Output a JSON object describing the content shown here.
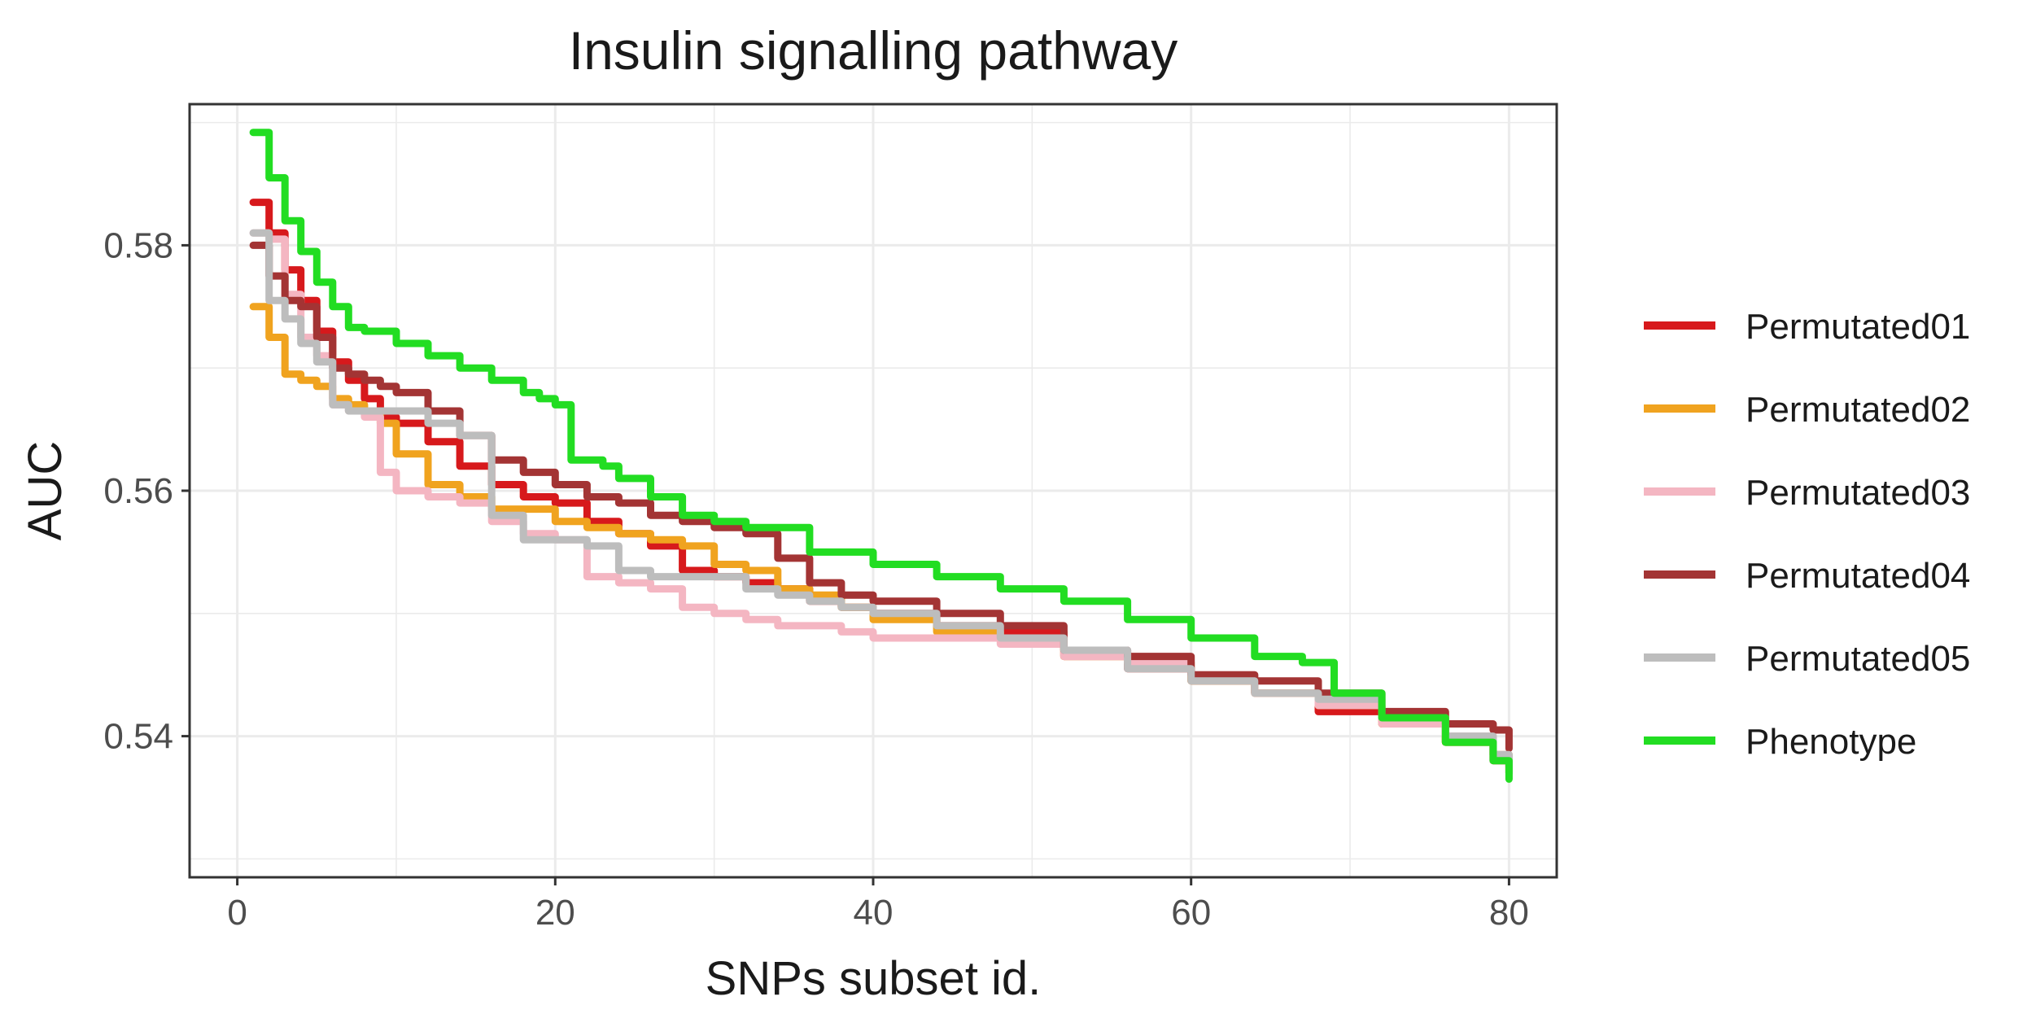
{
  "chart_data": {
    "type": "line",
    "title": "Insulin signalling pathway",
    "xlabel": "SNPs subset id.",
    "ylabel": "AUC",
    "xlim": [
      -3,
      83
    ],
    "ylim": [
      0.5285,
      0.5915
    ],
    "xticks": [
      0,
      20,
      40,
      60,
      80
    ],
    "xtick_labels": [
      "0",
      "20",
      "40",
      "60",
      "80"
    ],
    "yticks": [
      0.54,
      0.56,
      0.58
    ],
    "ytick_labels": [
      "0.54",
      "0.56",
      "0.58"
    ],
    "grid": true,
    "legend_position": "right",
    "series": [
      {
        "name": "Permutated01",
        "color": "#d7191c",
        "x": [
          1,
          2,
          3,
          4,
          5,
          6,
          7,
          8,
          9,
          10,
          12,
          14,
          16,
          18,
          20,
          22,
          24,
          26,
          28,
          30,
          32,
          34,
          36,
          38,
          40,
          44,
          48,
          52,
          56,
          60,
          64,
          68,
          72,
          76,
          79,
          80
        ],
        "y": [
          0.5835,
          0.581,
          0.578,
          0.5755,
          0.573,
          0.5705,
          0.569,
          0.5675,
          0.566,
          0.5655,
          0.564,
          0.562,
          0.5605,
          0.5595,
          0.559,
          0.5575,
          0.5565,
          0.5555,
          0.5535,
          0.553,
          0.5525,
          0.552,
          0.551,
          0.5505,
          0.55,
          0.549,
          0.5485,
          0.5465,
          0.5455,
          0.5445,
          0.5435,
          0.542,
          0.541,
          0.5395,
          0.538,
          0.5375
        ]
      },
      {
        "name": "Permutated02",
        "color": "#f0a31f",
        "x": [
          1,
          2,
          3,
          4,
          5,
          6,
          7,
          8,
          9,
          10,
          12,
          14,
          16,
          18,
          20,
          22,
          24,
          26,
          28,
          30,
          32,
          34,
          36,
          38,
          40,
          44,
          48,
          52,
          56,
          60,
          64,
          68,
          72,
          76,
          79,
          80
        ],
        "y": [
          0.575,
          0.5725,
          0.5695,
          0.569,
          0.5685,
          0.5675,
          0.567,
          0.5665,
          0.5655,
          0.563,
          0.5605,
          0.5595,
          0.5585,
          0.5585,
          0.5575,
          0.557,
          0.5565,
          0.556,
          0.5555,
          0.554,
          0.5535,
          0.552,
          0.5515,
          0.5505,
          0.5495,
          0.5485,
          0.548,
          0.5465,
          0.546,
          0.5445,
          0.5435,
          0.5425,
          0.541,
          0.5395,
          0.5385,
          0.537
        ]
      },
      {
        "name": "Permutated03",
        "color": "#f4b6c2",
        "x": [
          1,
          2,
          3,
          4,
          5,
          6,
          7,
          8,
          9,
          10,
          12,
          14,
          16,
          18,
          20,
          22,
          24,
          26,
          28,
          30,
          32,
          34,
          36,
          38,
          40,
          44,
          48,
          52,
          56,
          60,
          64,
          68,
          72,
          76,
          79,
          80
        ],
        "y": [
          0.581,
          0.5805,
          0.576,
          0.5725,
          0.571,
          0.567,
          0.5665,
          0.566,
          0.5615,
          0.56,
          0.5595,
          0.559,
          0.5575,
          0.5565,
          0.556,
          0.553,
          0.5525,
          0.552,
          0.5505,
          0.55,
          0.5495,
          0.549,
          0.549,
          0.5485,
          0.548,
          0.548,
          0.5475,
          0.5465,
          0.546,
          0.545,
          0.5435,
          0.5425,
          0.541,
          0.54,
          0.5385,
          0.537
        ]
      },
      {
        "name": "Permutated04",
        "color": "#a33434",
        "x": [
          1,
          2,
          3,
          4,
          5,
          6,
          7,
          8,
          9,
          10,
          12,
          14,
          16,
          18,
          20,
          22,
          24,
          26,
          28,
          30,
          32,
          34,
          36,
          38,
          40,
          44,
          48,
          52,
          56,
          60,
          64,
          68,
          72,
          76,
          79,
          80
        ],
        "y": [
          0.58,
          0.5775,
          0.5755,
          0.575,
          0.5725,
          0.57,
          0.5695,
          0.569,
          0.5685,
          0.568,
          0.5665,
          0.5645,
          0.5625,
          0.5615,
          0.5605,
          0.5595,
          0.559,
          0.558,
          0.5575,
          0.557,
          0.5565,
          0.5545,
          0.5525,
          0.5515,
          0.551,
          0.55,
          0.549,
          0.547,
          0.5465,
          0.545,
          0.5445,
          0.5435,
          0.542,
          0.541,
          0.5405,
          0.539
        ]
      },
      {
        "name": "Permutated05",
        "color": "#bdbdbd",
        "x": [
          1,
          2,
          3,
          4,
          5,
          6,
          7,
          8,
          9,
          10,
          12,
          14,
          16,
          18,
          20,
          22,
          24,
          26,
          28,
          30,
          32,
          34,
          36,
          38,
          40,
          44,
          48,
          52,
          56,
          60,
          64,
          68,
          72,
          76,
          79,
          80
        ],
        "y": [
          0.581,
          0.5755,
          0.574,
          0.572,
          0.5705,
          0.567,
          0.5665,
          0.5665,
          0.5665,
          0.5665,
          0.5655,
          0.5645,
          0.558,
          0.556,
          0.556,
          0.5555,
          0.5535,
          0.553,
          0.553,
          0.553,
          0.552,
          0.5515,
          0.551,
          0.5505,
          0.55,
          0.549,
          0.548,
          0.547,
          0.5455,
          0.5445,
          0.5435,
          0.543,
          0.5415,
          0.54,
          0.5385,
          0.537
        ]
      },
      {
        "name": "Phenotype",
        "color": "#22dd22",
        "x": [
          1,
          2,
          3,
          4,
          5,
          6,
          7,
          8,
          10,
          12,
          14,
          16,
          18,
          19,
          20,
          21,
          22,
          23,
          24,
          26,
          28,
          30,
          32,
          36,
          40,
          44,
          48,
          52,
          56,
          60,
          64,
          67,
          69,
          72,
          76,
          79,
          80
        ],
        "y": [
          0.5892,
          0.5855,
          0.582,
          0.5795,
          0.577,
          0.575,
          0.5733,
          0.573,
          0.572,
          0.571,
          0.57,
          0.569,
          0.568,
          0.5675,
          0.567,
          0.5625,
          0.5625,
          0.562,
          0.561,
          0.5595,
          0.558,
          0.5575,
          0.557,
          0.555,
          0.554,
          0.553,
          0.552,
          0.551,
          0.5495,
          0.548,
          0.5465,
          0.546,
          0.5435,
          0.5415,
          0.5395,
          0.538,
          0.5365
        ]
      }
    ]
  }
}
